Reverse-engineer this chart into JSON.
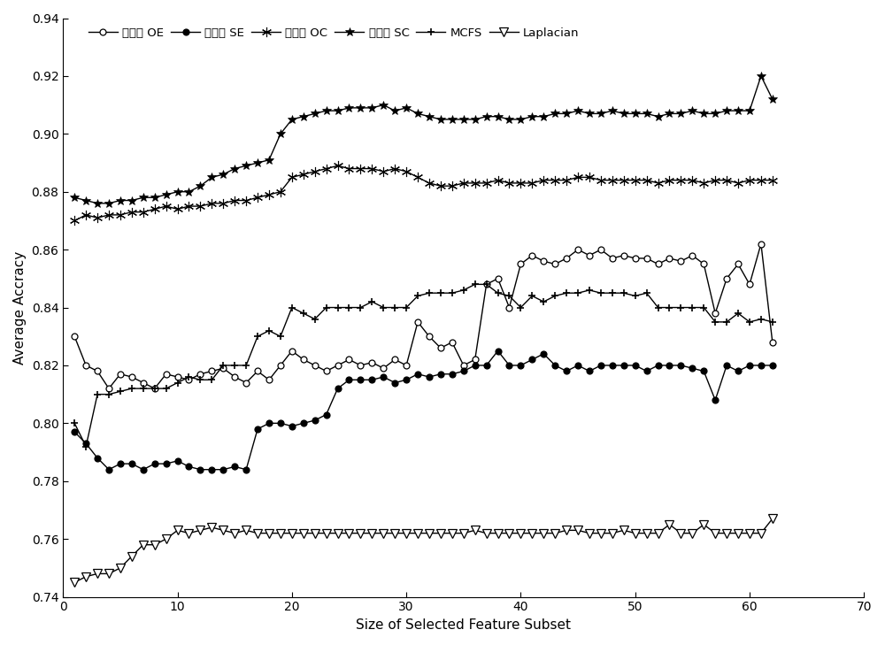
{
  "xlabel": "Size of Selected Feature Subset",
  "ylabel": "Average Accracy",
  "xlim": [
    0,
    70
  ],
  "ylim": [
    0.74,
    0.94
  ],
  "yticks": [
    0.74,
    0.76,
    0.78,
    0.8,
    0.82,
    0.84,
    0.86,
    0.88,
    0.9,
    0.92,
    0.94
  ],
  "xticks": [
    0,
    10,
    20,
    30,
    40,
    50,
    60,
    70
  ],
  "legend_labels": [
    "本发明 OE",
    "本发明 SE",
    "本发明 OC",
    "本发明 SC",
    "MCFS",
    "Laplacian"
  ],
  "OE": [
    0.83,
    0.82,
    0.818,
    0.812,
    0.817,
    0.816,
    0.814,
    0.812,
    0.817,
    0.816,
    0.815,
    0.817,
    0.818,
    0.819,
    0.816,
    0.814,
    0.818,
    0.815,
    0.82,
    0.825,
    0.822,
    0.82,
    0.818,
    0.82,
    0.822,
    0.82,
    0.821,
    0.819,
    0.822,
    0.82,
    0.835,
    0.83,
    0.826,
    0.828,
    0.82,
    0.822,
    0.848,
    0.85,
    0.84,
    0.855,
    0.858,
    0.856,
    0.855,
    0.857,
    0.86,
    0.858,
    0.86,
    0.857,
    0.858,
    0.857,
    0.857,
    0.855,
    0.857,
    0.856,
    0.858,
    0.855,
    0.838,
    0.85,
    0.855,
    0.848,
    0.862,
    0.828
  ],
  "SE": [
    0.797,
    0.793,
    0.788,
    0.784,
    0.786,
    0.786,
    0.784,
    0.786,
    0.786,
    0.787,
    0.785,
    0.784,
    0.784,
    0.784,
    0.785,
    0.784,
    0.798,
    0.8,
    0.8,
    0.799,
    0.8,
    0.801,
    0.803,
    0.812,
    0.815,
    0.815,
    0.815,
    0.816,
    0.814,
    0.815,
    0.817,
    0.816,
    0.817,
    0.817,
    0.818,
    0.82,
    0.82,
    0.825,
    0.82,
    0.82,
    0.822,
    0.824,
    0.82,
    0.818,
    0.82,
    0.818,
    0.82,
    0.82,
    0.82,
    0.82,
    0.818,
    0.82,
    0.82,
    0.82,
    0.819,
    0.818,
    0.808,
    0.82,
    0.818,
    0.82,
    0.82,
    0.82
  ],
  "OC": [
    0.87,
    0.872,
    0.871,
    0.872,
    0.872,
    0.873,
    0.873,
    0.874,
    0.875,
    0.874,
    0.875,
    0.875,
    0.876,
    0.876,
    0.877,
    0.877,
    0.878,
    0.879,
    0.88,
    0.885,
    0.886,
    0.887,
    0.888,
    0.889,
    0.888,
    0.888,
    0.888,
    0.887,
    0.888,
    0.887,
    0.885,
    0.883,
    0.882,
    0.882,
    0.883,
    0.883,
    0.883,
    0.884,
    0.883,
    0.883,
    0.883,
    0.884,
    0.884,
    0.884,
    0.885,
    0.885,
    0.884,
    0.884,
    0.884,
    0.884,
    0.884,
    0.883,
    0.884,
    0.884,
    0.884,
    0.883,
    0.884,
    0.884,
    0.883,
    0.884,
    0.884,
    0.884
  ],
  "SC": [
    0.878,
    0.877,
    0.876,
    0.876,
    0.877,
    0.877,
    0.878,
    0.878,
    0.879,
    0.88,
    0.88,
    0.882,
    0.885,
    0.886,
    0.888,
    0.889,
    0.89,
    0.891,
    0.9,
    0.905,
    0.906,
    0.907,
    0.908,
    0.908,
    0.909,
    0.909,
    0.909,
    0.91,
    0.908,
    0.909,
    0.907,
    0.906,
    0.905,
    0.905,
    0.905,
    0.905,
    0.906,
    0.906,
    0.905,
    0.905,
    0.906,
    0.906,
    0.907,
    0.907,
    0.908,
    0.907,
    0.907,
    0.908,
    0.907,
    0.907,
    0.907,
    0.906,
    0.907,
    0.907,
    0.908,
    0.907,
    0.907,
    0.908,
    0.908,
    0.908,
    0.92,
    0.912
  ],
  "MCFS": [
    0.8,
    0.792,
    0.81,
    0.81,
    0.811,
    0.812,
    0.812,
    0.812,
    0.812,
    0.814,
    0.816,
    0.815,
    0.815,
    0.82,
    0.82,
    0.82,
    0.83,
    0.832,
    0.83,
    0.84,
    0.838,
    0.836,
    0.84,
    0.84,
    0.84,
    0.84,
    0.842,
    0.84,
    0.84,
    0.84,
    0.844,
    0.845,
    0.845,
    0.845,
    0.846,
    0.848,
    0.848,
    0.845,
    0.844,
    0.84,
    0.844,
    0.842,
    0.844,
    0.845,
    0.845,
    0.846,
    0.845,
    0.845,
    0.845,
    0.844,
    0.845,
    0.84,
    0.84,
    0.84,
    0.84,
    0.84,
    0.835,
    0.835,
    0.838,
    0.835,
    0.836,
    0.835
  ],
  "Laplacian": [
    0.745,
    0.747,
    0.748,
    0.748,
    0.75,
    0.754,
    0.758,
    0.758,
    0.76,
    0.763,
    0.762,
    0.763,
    0.764,
    0.763,
    0.762,
    0.763,
    0.762,
    0.762,
    0.762,
    0.762,
    0.762,
    0.762,
    0.762,
    0.762,
    0.762,
    0.762,
    0.762,
    0.762,
    0.762,
    0.762,
    0.762,
    0.762,
    0.762,
    0.762,
    0.762,
    0.763,
    0.762,
    0.762,
    0.762,
    0.762,
    0.762,
    0.762,
    0.762,
    0.763,
    0.763,
    0.762,
    0.762,
    0.762,
    0.763,
    0.762,
    0.762,
    0.762,
    0.765,
    0.762,
    0.762,
    0.765,
    0.762,
    0.762,
    0.762,
    0.762,
    0.762,
    0.767
  ]
}
